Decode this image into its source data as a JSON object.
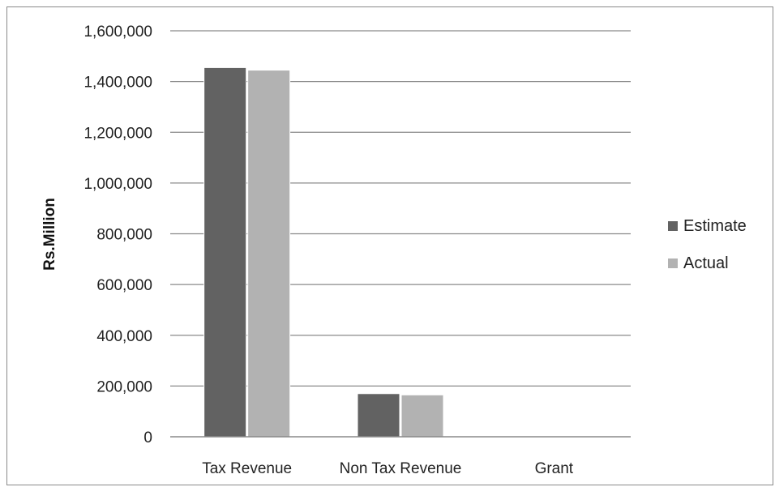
{
  "chart_data": {
    "type": "bar",
    "title": "",
    "xlabel": "",
    "ylabel": "Rs.Million",
    "categories": [
      "Tax Revenue",
      "Non Tax Revenue",
      "Grant"
    ],
    "series": [
      {
        "name": "Estimate",
        "color": "#626262",
        "values": [
          1455000,
          170000,
          0
        ]
      },
      {
        "name": "Actual",
        "color": "#b2b2b2",
        "values": [
          1445000,
          165000,
          0
        ]
      }
    ],
    "ylim": [
      0,
      1600000
    ],
    "yticks": [
      0,
      200000,
      400000,
      600000,
      800000,
      1000000,
      1200000,
      1400000,
      1600000
    ],
    "ytick_labels": [
      "0",
      "200,000",
      "400,000",
      "600,000",
      "800,000",
      "1,000,000",
      "1,200,000",
      "1,400,000",
      "1,600,000"
    ],
    "grid": true,
    "legend_position": "right"
  }
}
